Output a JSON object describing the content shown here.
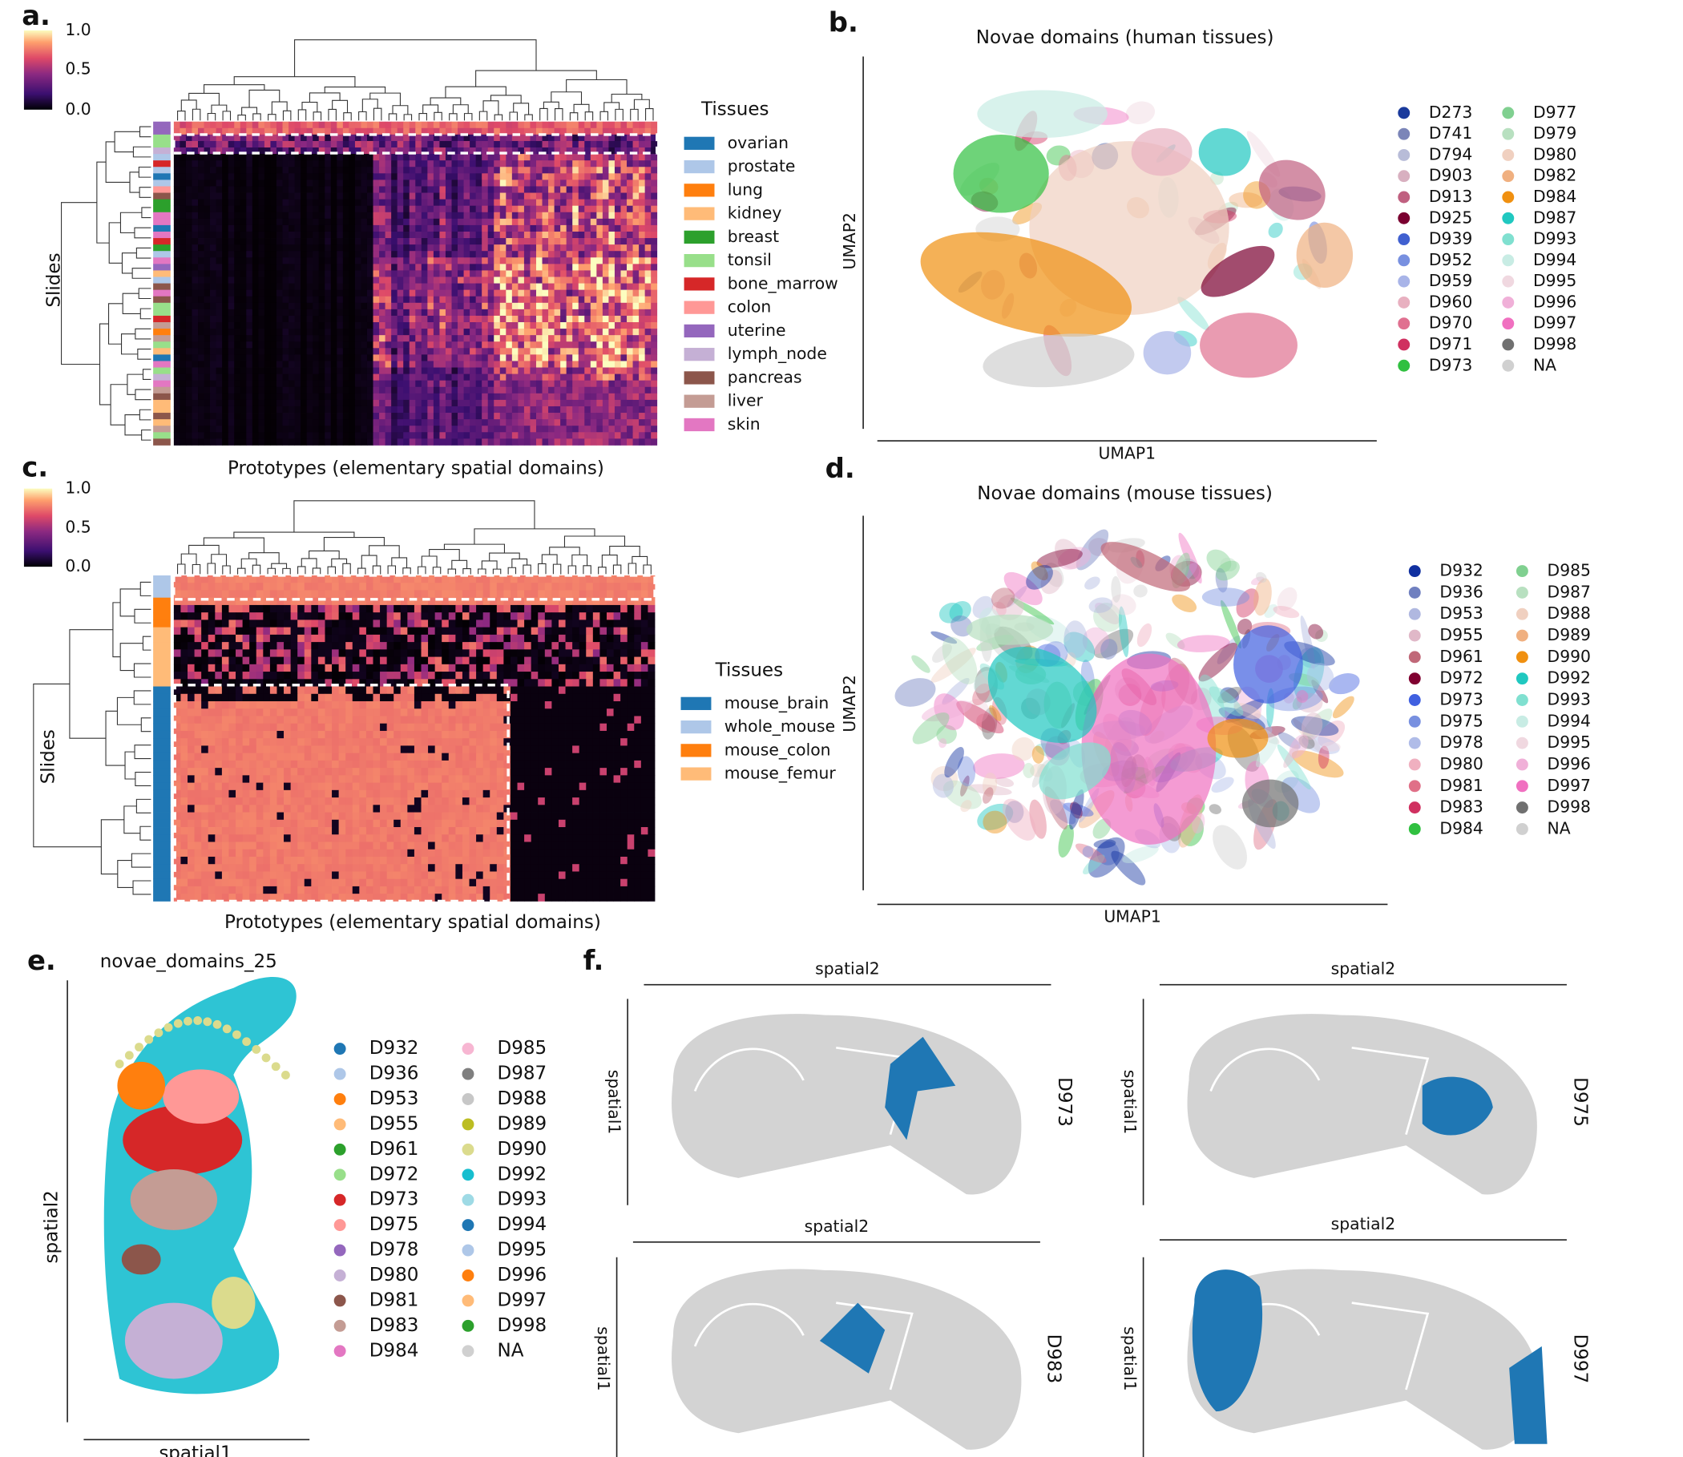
{
  "panel_a": {
    "label": "a.",
    "colorbar_ticks": [
      "1.0",
      "0.5",
      "0.0"
    ],
    "y_label": "Slides",
    "x_label": "Prototypes (elementary spatial domains)",
    "legend_title": "Tissues",
    "legend": [
      {
        "name": "ovarian",
        "color": "#1f77b4"
      },
      {
        "name": "prostate",
        "color": "#aec7e8"
      },
      {
        "name": "lung",
        "color": "#ff7f0e"
      },
      {
        "name": "kidney",
        "color": "#ffbb78"
      },
      {
        "name": "breast",
        "color": "#2ca02c"
      },
      {
        "name": "tonsil",
        "color": "#98df8a"
      },
      {
        "name": "bone_marrow",
        "color": "#d62728"
      },
      {
        "name": "colon",
        "color": "#ff9896"
      },
      {
        "name": "uterine",
        "color": "#9467bd"
      },
      {
        "name": "lymph_node",
        "color": "#c5b0d5"
      },
      {
        "name": "pancreas",
        "color": "#8c564b"
      },
      {
        "name": "liver",
        "color": "#c49c94"
      },
      {
        "name": "skin",
        "color": "#e377c2"
      }
    ]
  },
  "panel_b": {
    "label": "b.",
    "title": "Novae domains (human tissues)",
    "x_label": "UMAP1",
    "y_label": "UMAP2",
    "legend": [
      {
        "name": "D273",
        "color": "#1a3a9c"
      },
      {
        "name": "D741",
        "color": "#7b85b8"
      },
      {
        "name": "D794",
        "color": "#b8bcd8"
      },
      {
        "name": "D903",
        "color": "#d8b0c0"
      },
      {
        "name": "D913",
        "color": "#c06080"
      },
      {
        "name": "D925",
        "color": "#7a0030"
      },
      {
        "name": "D939",
        "color": "#4060d0"
      },
      {
        "name": "D952",
        "color": "#7890e0"
      },
      {
        "name": "D959",
        "color": "#a8b4e8"
      },
      {
        "name": "D960",
        "color": "#e8b0c0"
      },
      {
        "name": "D970",
        "color": "#e07090"
      },
      {
        "name": "D971",
        "color": "#d03060"
      },
      {
        "name": "D973",
        "color": "#30c040"
      },
      {
        "name": "D977",
        "color": "#80d090"
      },
      {
        "name": "D979",
        "color": "#b8e0c0"
      },
      {
        "name": "D980",
        "color": "#f0d0c0"
      },
      {
        "name": "D982",
        "color": "#f0b080"
      },
      {
        "name": "D984",
        "color": "#f09010"
      },
      {
        "name": "D987",
        "color": "#20c8c0"
      },
      {
        "name": "D993",
        "color": "#80e0d0"
      },
      {
        "name": "D994",
        "color": "#c8ece4"
      },
      {
        "name": "D995",
        "color": "#f0d8e0"
      },
      {
        "name": "D996",
        "color": "#f0b0d8"
      },
      {
        "name": "D997",
        "color": "#f070c0"
      },
      {
        "name": "D998",
        "color": "#707070"
      },
      {
        "name": "NA",
        "color": "#d0d0d0"
      }
    ]
  },
  "panel_c": {
    "label": "c.",
    "colorbar_ticks": [
      "1.0",
      "0.5",
      "0.0"
    ],
    "y_label": "Slides",
    "x_label": "Prototypes (elementary spatial domains)",
    "legend_title": "Tissues",
    "legend": [
      {
        "name": "mouse_brain",
        "color": "#1f77b4"
      },
      {
        "name": "whole_mouse",
        "color": "#aec7e8"
      },
      {
        "name": "mouse_colon",
        "color": "#ff7f0e"
      },
      {
        "name": "mouse_femur",
        "color": "#ffbb78"
      }
    ]
  },
  "panel_d": {
    "label": "d.",
    "title": "Novae domains (mouse tissues)",
    "x_label": "UMAP1",
    "y_label": "UMAP2",
    "legend": [
      {
        "name": "D932",
        "color": "#1030a0"
      },
      {
        "name": "D936",
        "color": "#7080c0"
      },
      {
        "name": "D953",
        "color": "#b0b8e0"
      },
      {
        "name": "D955",
        "color": "#e0b8c8"
      },
      {
        "name": "D961",
        "color": "#c06878"
      },
      {
        "name": "D972",
        "color": "#800030"
      },
      {
        "name": "D973",
        "color": "#4060e0"
      },
      {
        "name": "D975",
        "color": "#7890e0"
      },
      {
        "name": "D978",
        "color": "#b0bce8"
      },
      {
        "name": "D980",
        "color": "#f0b0c0"
      },
      {
        "name": "D981",
        "color": "#e07088"
      },
      {
        "name": "D983",
        "color": "#d03060"
      },
      {
        "name": "D984",
        "color": "#30c040"
      },
      {
        "name": "D985",
        "color": "#80d090"
      },
      {
        "name": "D987",
        "color": "#b8e0c0"
      },
      {
        "name": "D988",
        "color": "#f0d0c0"
      },
      {
        "name": "D989",
        "color": "#f0b080"
      },
      {
        "name": "D990",
        "color": "#f09010"
      },
      {
        "name": "D992",
        "color": "#20c8c0"
      },
      {
        "name": "D993",
        "color": "#80e0d0"
      },
      {
        "name": "D994",
        "color": "#c8ece4"
      },
      {
        "name": "D995",
        "color": "#f0d8e0"
      },
      {
        "name": "D996",
        "color": "#f0b0d8"
      },
      {
        "name": "D997",
        "color": "#f070c0"
      },
      {
        "name": "D998",
        "color": "#707070"
      },
      {
        "name": "NA",
        "color": "#d0d0d0"
      }
    ]
  },
  "panel_e": {
    "label": "e.",
    "title": "novae_domains_25",
    "x_label": "spatial1",
    "y_label": "spatial2",
    "legend": [
      {
        "name": "D932",
        "color": "#1f77b4"
      },
      {
        "name": "D936",
        "color": "#aec7e8"
      },
      {
        "name": "D953",
        "color": "#ff7f0e"
      },
      {
        "name": "D955",
        "color": "#ffbb78"
      },
      {
        "name": "D961",
        "color": "#2ca02c"
      },
      {
        "name": "D972",
        "color": "#98df8a"
      },
      {
        "name": "D973",
        "color": "#d62728"
      },
      {
        "name": "D975",
        "color": "#ff9896"
      },
      {
        "name": "D978",
        "color": "#9467bd"
      },
      {
        "name": "D980",
        "color": "#c5b0d5"
      },
      {
        "name": "D981",
        "color": "#8c564b"
      },
      {
        "name": "D983",
        "color": "#c49c94"
      },
      {
        "name": "D984",
        "color": "#e377c2"
      },
      {
        "name": "D985",
        "color": "#f7b6d2"
      },
      {
        "name": "D987",
        "color": "#7f7f7f"
      },
      {
        "name": "D988",
        "color": "#c7c7c7"
      },
      {
        "name": "D989",
        "color": "#bcbd22"
      },
      {
        "name": "D990",
        "color": "#dbdb8d"
      },
      {
        "name": "D992",
        "color": "#17becf"
      },
      {
        "name": "D993",
        "color": "#9edae5"
      },
      {
        "name": "D994",
        "color": "#1f77b4"
      },
      {
        "name": "D995",
        "color": "#aec7e8"
      },
      {
        "name": "D996",
        "color": "#ff7f0e"
      },
      {
        "name": "D997",
        "color": "#ffbb78"
      },
      {
        "name": "D998",
        "color": "#2ca02c"
      },
      {
        "name": "NA",
        "color": "#d0d0d0"
      }
    ]
  },
  "panel_f": {
    "label": "f.",
    "panels": [
      {
        "domain": "D973",
        "x_label": "spatial2",
        "y_label": "spatial1"
      },
      {
        "domain": "D975",
        "x_label": "spatial2",
        "y_label": "spatial1"
      },
      {
        "domain": "D983",
        "x_label": "spatial2",
        "y_label": "spatial1"
      },
      {
        "domain": "D997",
        "x_label": "spatial2",
        "y_label": "spatial1"
      }
    ]
  }
}
